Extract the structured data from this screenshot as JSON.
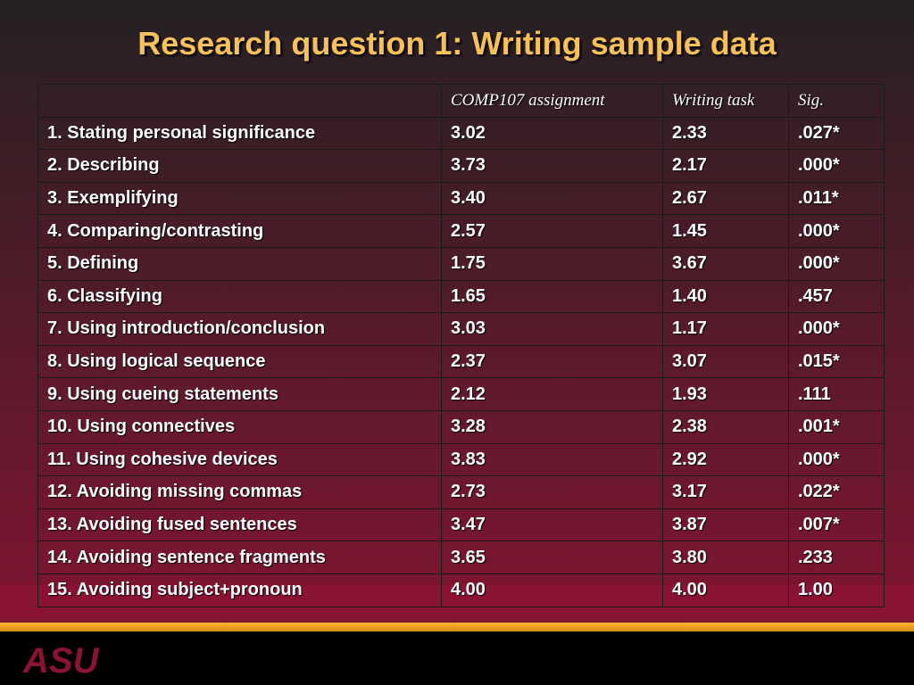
{
  "title": "Research question 1:  Writing sample data",
  "table": {
    "headers": [
      "",
      "COMP107 assignment",
      "Writing task",
      "Sig."
    ],
    "rows": [
      [
        "1. Stating personal significance",
        "3.02",
        "2.33",
        ".027*"
      ],
      [
        "2. Describing",
        "3.73",
        "2.17",
        ".000*"
      ],
      [
        "3. Exemplifying",
        "3.40",
        "2.67",
        ".011*"
      ],
      [
        "4. Comparing/contrasting",
        "2.57",
        "1.45",
        ".000*"
      ],
      [
        "5. Defining",
        "1.75",
        "3.67",
        ".000*"
      ],
      [
        "6. Classifying",
        "1.65",
        "1.40",
        ".457"
      ],
      [
        "7. Using introduction/conclusion",
        "3.03",
        "1.17",
        ".000*"
      ],
      [
        "8. Using logical sequence",
        "2.37",
        "3.07",
        ".015*"
      ],
      [
        "9. Using cueing statements",
        "2.12",
        "1.93",
        ".111"
      ],
      [
        "10. Using connectives",
        "3.28",
        "2.38",
        ".001*"
      ],
      [
        "11. Using cohesive devices",
        "3.83",
        "2.92",
        ".000*"
      ],
      [
        "12. Avoiding missing commas",
        "2.73",
        "3.17",
        ".022*"
      ],
      [
        "13. Avoiding fused sentences",
        "3.47",
        "3.87",
        ".007*"
      ],
      [
        "14. Avoiding sentence fragments",
        "3.65",
        "3.80",
        ".233"
      ],
      [
        "15. Avoiding subject+pronoun",
        "4.00",
        "4.00",
        "1.00"
      ]
    ]
  },
  "logo": {
    "text": "ASU",
    "color": "#8a1233"
  },
  "colors": {
    "title": "#f6c15a",
    "stripe": "#f7b733",
    "band": "#8a1233"
  }
}
